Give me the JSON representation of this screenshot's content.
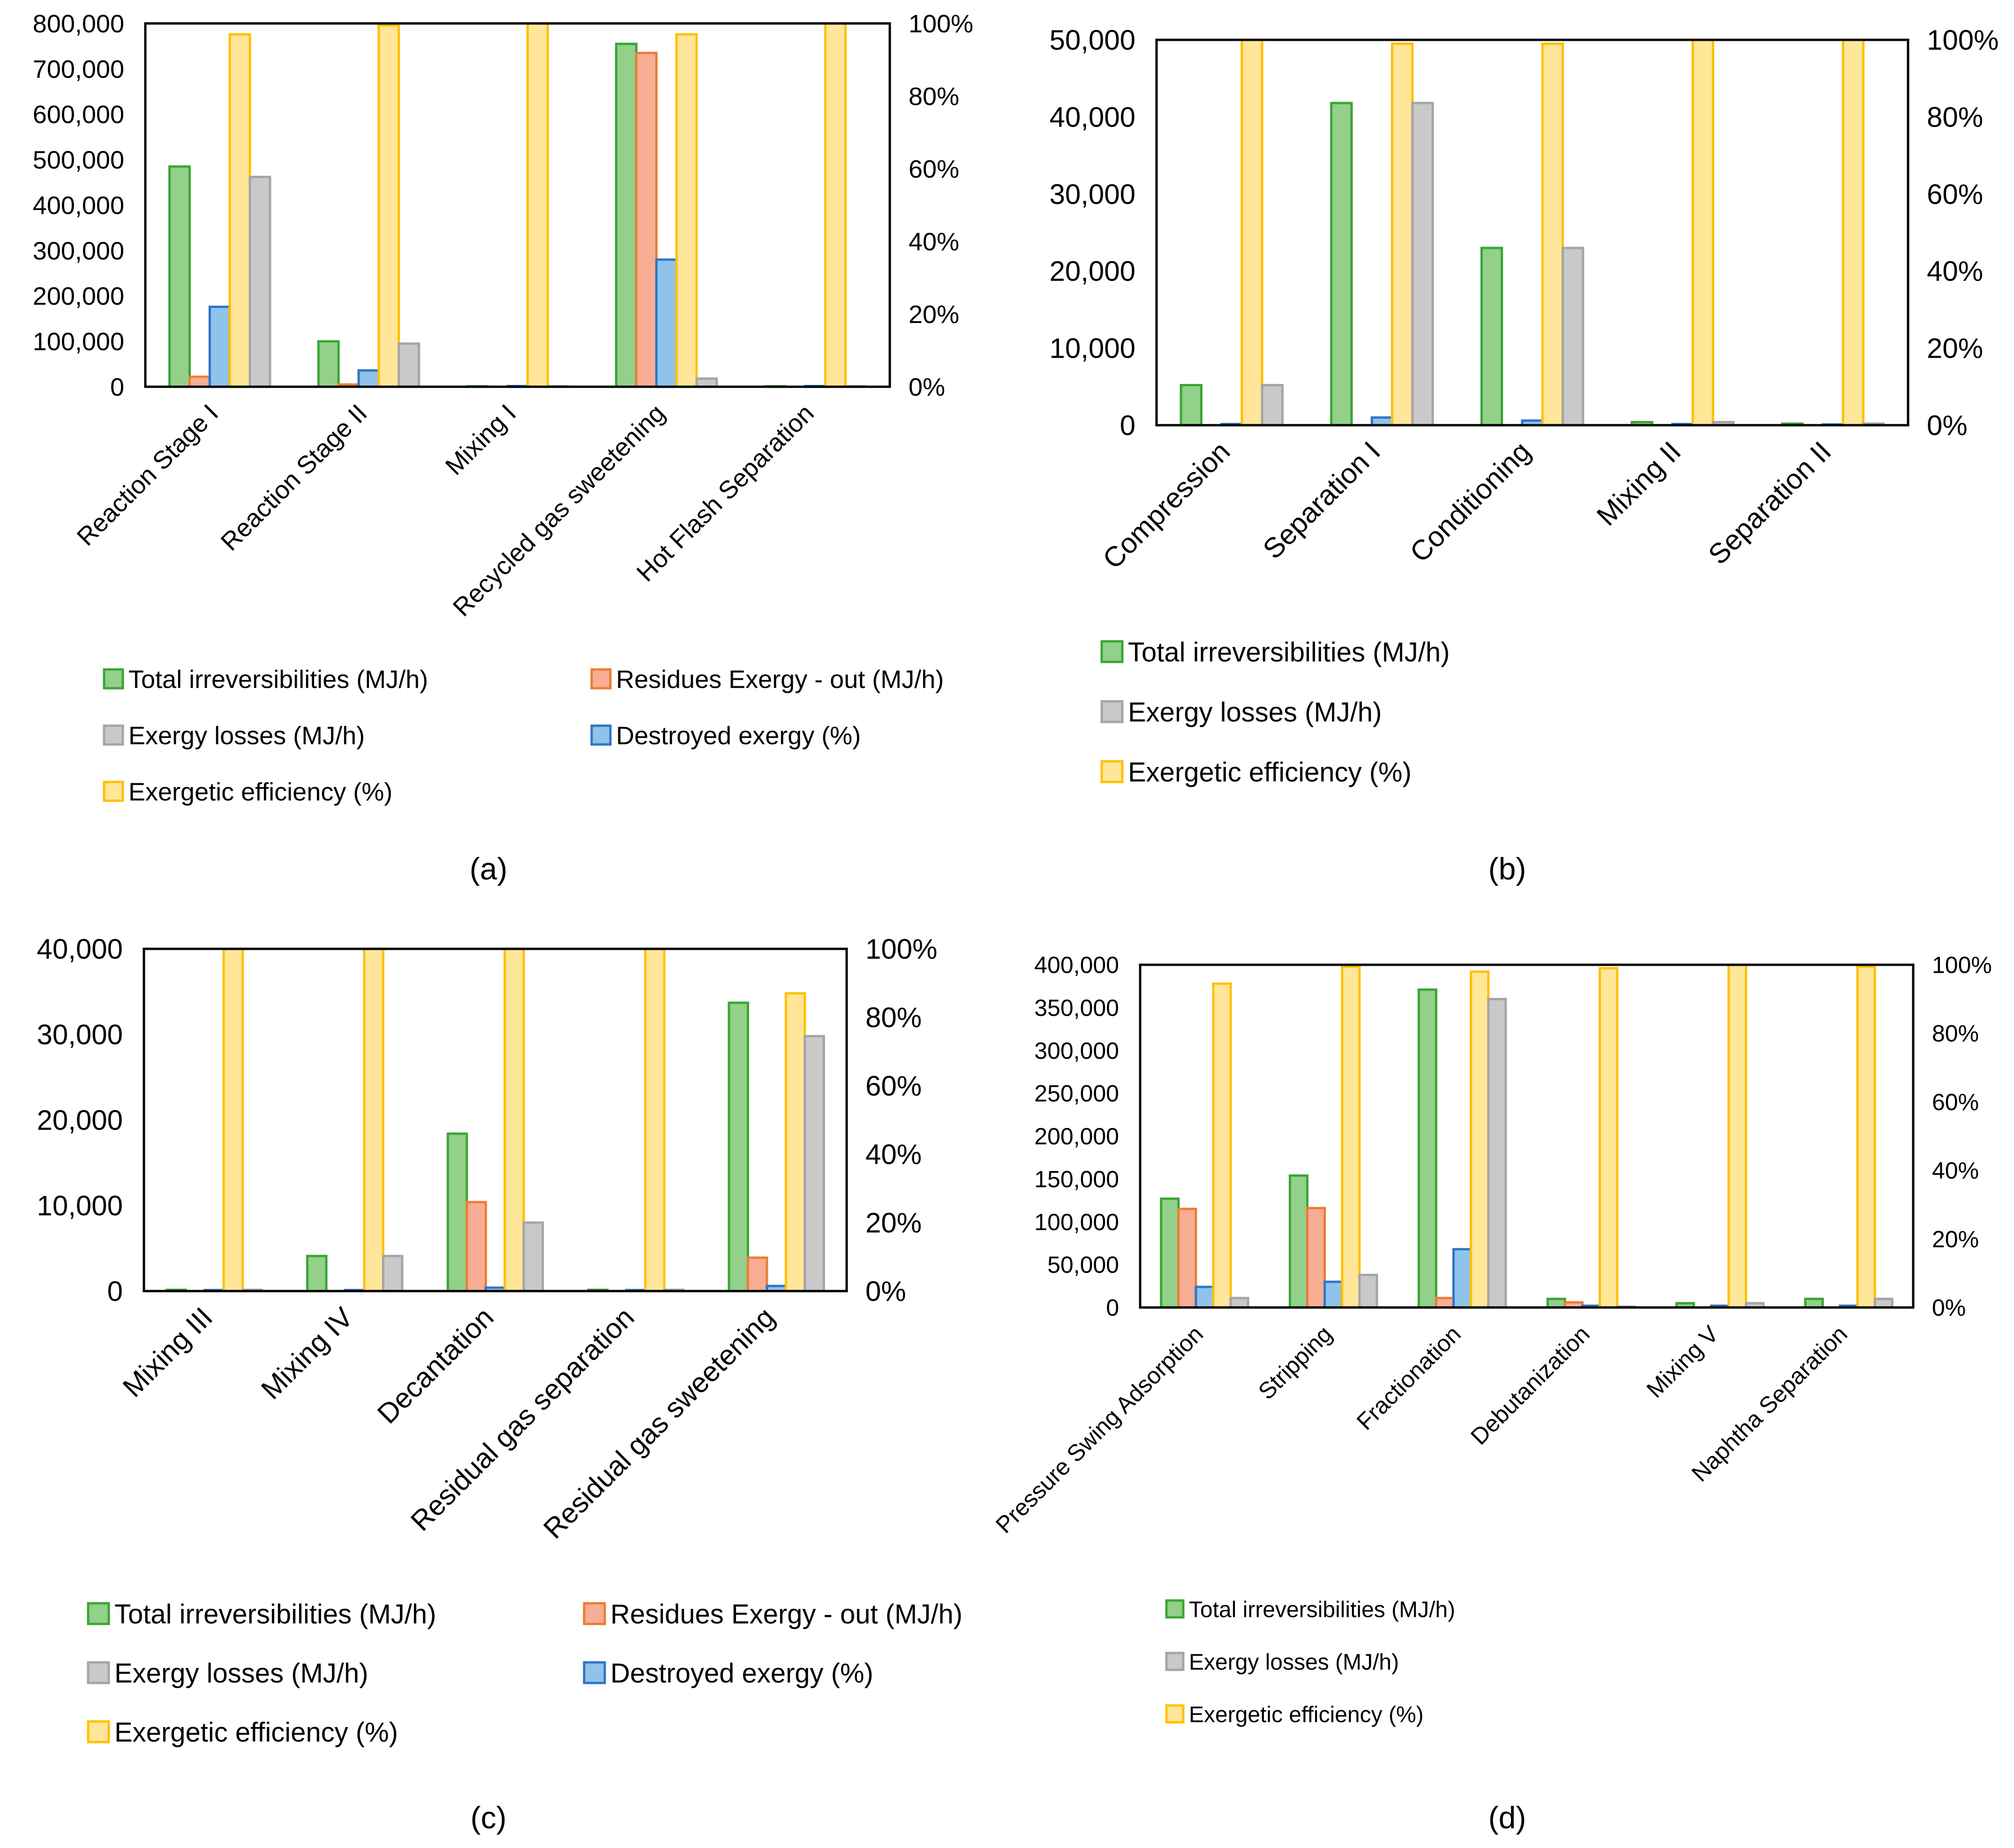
{
  "legend_labels": {
    "total": "Total irreversibilities (MJ/h)",
    "residues": "Residues Exergy - out  (MJ/h)",
    "losses": "Exergy losses (MJ/h)",
    "destroyed": "Destroyed exergy (%)",
    "efficiency": "Exergetic efficiency (%)"
  },
  "colors": {
    "total": {
      "fill": "#93d08a",
      "stroke": "#3aa635"
    },
    "residues": {
      "fill": "#f7ae94",
      "stroke": "#ed7d31"
    },
    "losses": {
      "fill": "#c9c9c9",
      "stroke": "#a5a5a5"
    },
    "destroyed": {
      "fill": "#8fc3ea",
      "stroke": "#2f75c8"
    },
    "efficiency": {
      "fill": "#ffe699",
      "stroke": "#ffc000"
    }
  },
  "chart_data": [
    {
      "type": "bar",
      "panel": "a",
      "caption": "(a)",
      "categories": [
        "Reaction Stage I",
        "Reaction Stage II",
        "Mixing I",
        "Recycled gas sweetening",
        "Hot Flash Separation"
      ],
      "ylim": [
        0,
        800000
      ],
      "yticks": [
        "0",
        "100,000",
        "200,000",
        "300,000",
        "400,000",
        "500,000",
        "600,000",
        "700,000",
        "800,000"
      ],
      "y2lim": [
        0,
        100
      ],
      "y2ticks": [
        "0%",
        "20%",
        "40%",
        "60%",
        "80%",
        "100%"
      ],
      "series": [
        {
          "key": "total",
          "name": "Total irreversibilities (MJ/h)",
          "axis": "left",
          "values": [
            485000,
            100000,
            1000,
            755000,
            1000
          ]
        },
        {
          "key": "residues",
          "name": "Residues Exergy - out  (MJ/h)",
          "axis": "left",
          "values": [
            22000,
            5000,
            0,
            735000,
            0
          ]
        },
        {
          "key": "destroyed",
          "name": "Destroyed exergy (%)",
          "axis": "right",
          "values": [
            22,
            4.5,
            0.2,
            35,
            0.2
          ]
        },
        {
          "key": "efficiency",
          "name": "Exergetic efficiency (%)",
          "axis": "right",
          "values": [
            97,
            99.5,
            100,
            97,
            100
          ]
        },
        {
          "key": "losses",
          "name": "Exergy losses (MJ/h)",
          "axis": "left",
          "values": [
            462000,
            95000,
            1000,
            18000,
            1000
          ]
        }
      ]
    },
    {
      "type": "bar",
      "panel": "b",
      "caption": "(b)",
      "categories": [
        "Compression",
        "Separation I",
        "Conditioning",
        "Mixing II",
        "Separation II"
      ],
      "ylim": [
        0,
        50000
      ],
      "yticks": [
        "0",
        "10,000",
        "20,000",
        "30,000",
        "40,000",
        "50,000"
      ],
      "y2lim": [
        0,
        100
      ],
      "y2ticks": [
        "0%",
        "20%",
        "40%",
        "60%",
        "80%",
        "100%"
      ],
      "series": [
        {
          "key": "total",
          "name": "Total irreversibilities (MJ/h)",
          "axis": "left",
          "values": [
            5200,
            41800,
            23000,
            400,
            200
          ]
        },
        {
          "key": "residues",
          "name": "Residues Exergy - out  (MJ/h)",
          "axis": "left",
          "values": [
            0,
            0,
            0,
            0,
            0
          ]
        },
        {
          "key": "destroyed",
          "name": "Destroyed exergy (%)",
          "axis": "right",
          "values": [
            0.3,
            2,
            1.2,
            0.3,
            0.2
          ]
        },
        {
          "key": "efficiency",
          "name": "Exergetic efficiency (%)",
          "axis": "right",
          "values": [
            100,
            99,
            99,
            100,
            100
          ]
        },
        {
          "key": "losses",
          "name": "Exergy losses (MJ/h)",
          "axis": "left",
          "values": [
            5200,
            41800,
            23000,
            400,
            200
          ]
        }
      ]
    },
    {
      "type": "bar",
      "panel": "c",
      "caption": "(c)",
      "categories": [
        "Mixing III",
        "Mixing IV",
        "Decantation",
        "Residual gas separation",
        "Residual gas sweetening"
      ],
      "ylim": [
        0,
        40000
      ],
      "yticks": [
        "0",
        "10,000",
        "20,000",
        "30,000",
        "40,000"
      ],
      "y2lim": [
        0,
        100
      ],
      "y2ticks": [
        "0%",
        "20%",
        "40%",
        "60%",
        "80%",
        "100%"
      ],
      "series": [
        {
          "key": "total",
          "name": "Total irreversibilities (MJ/h)",
          "axis": "left",
          "values": [
            150,
            4100,
            18400,
            150,
            33700
          ]
        },
        {
          "key": "residues",
          "name": "Residues Exergy - out  (MJ/h)",
          "axis": "left",
          "values": [
            0,
            0,
            10400,
            0,
            3900
          ]
        },
        {
          "key": "destroyed",
          "name": "Destroyed exergy (%)",
          "axis": "right",
          "values": [
            0.3,
            0.3,
            1,
            0.3,
            1.5
          ]
        },
        {
          "key": "efficiency",
          "name": "Exergetic efficiency (%)",
          "axis": "right",
          "values": [
            100,
            100,
            100,
            100,
            87
          ]
        },
        {
          "key": "losses",
          "name": "Exergy losses (MJ/h)",
          "axis": "left",
          "values": [
            150,
            4100,
            8000,
            150,
            29800
          ]
        }
      ]
    },
    {
      "type": "bar",
      "panel": "d",
      "caption": "(d)",
      "categories": [
        "Pressure Swing Adsorption",
        "Stripping",
        "Fractionation",
        "Debutanization",
        "Mixing V",
        "Naphtha Separation"
      ],
      "ylim": [
        0,
        400000
      ],
      "yticks": [
        "0",
        "50,000",
        "100,000",
        "150,000",
        "200,000",
        "250,000",
        "300,000",
        "350,000",
        "400,000"
      ],
      "y2lim": [
        0,
        100
      ],
      "y2ticks": [
        "0%",
        "20%",
        "40%",
        "60%",
        "80%",
        "100%"
      ],
      "series": [
        {
          "key": "total",
          "name": "Total irreversibilities (MJ/h)",
          "axis": "left",
          "values": [
            127000,
            154000,
            371000,
            10000,
            5000,
            10000
          ]
        },
        {
          "key": "residues",
          "name": "Residues Exergy - out  (MJ/h)",
          "axis": "left",
          "values": [
            115000,
            116000,
            11000,
            6000,
            0,
            0
          ]
        },
        {
          "key": "destroyed",
          "name": "Destroyed exergy (%)",
          "axis": "right",
          "values": [
            6,
            7.5,
            17,
            0.5,
            0.5,
            0.5
          ]
        },
        {
          "key": "efficiency",
          "name": "Exergetic efficiency (%)",
          "axis": "right",
          "values": [
            94.5,
            99.5,
            98,
            99,
            100,
            99.5
          ]
        },
        {
          "key": "losses",
          "name": "Exergy losses (MJ/h)",
          "axis": "left",
          "values": [
            11000,
            38000,
            360000,
            1000,
            5000,
            10000
          ]
        }
      ]
    }
  ]
}
